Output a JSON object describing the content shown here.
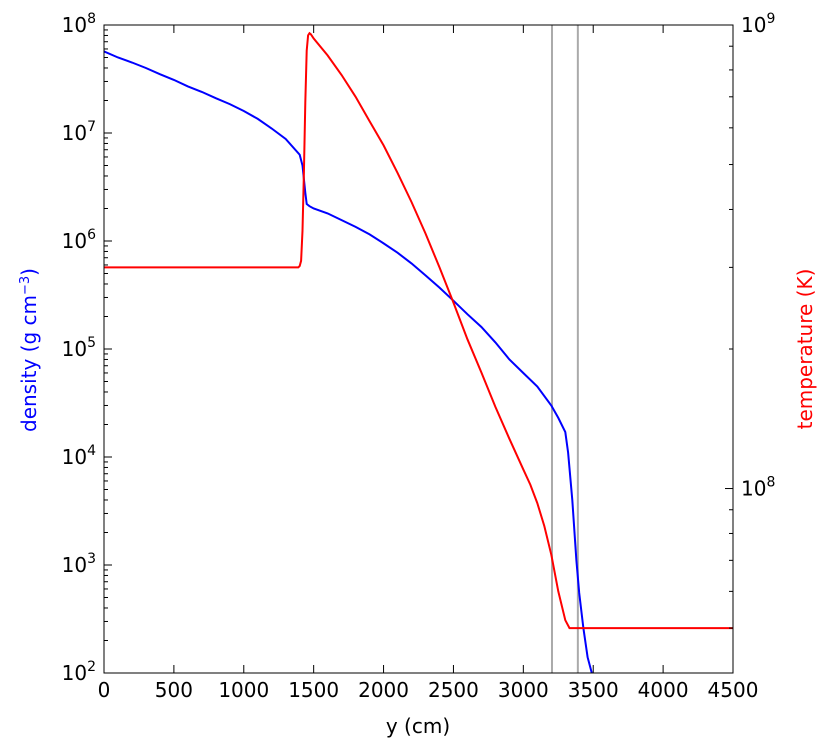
{
  "chart_data": {
    "type": "line",
    "xlabel": "y (cm)",
    "ylabel_left": {
      "text": "density (g cm",
      "sup": "−3",
      "close": ")"
    },
    "ylabel_right": "temperature (K)",
    "xlim": [
      0,
      4500
    ],
    "ylim_left": [
      100,
      100000000
    ],
    "ylim_right": [
      40000000,
      1000000000
    ],
    "scale_left": "log",
    "scale_right": "log",
    "grid": false,
    "xticks": [
      0,
      500,
      1000,
      1500,
      2000,
      2500,
      3000,
      3500,
      4000,
      4500
    ],
    "xtick_labels": [
      "0",
      "500",
      "1000",
      "1500",
      "2000",
      "2500",
      "3000",
      "3500",
      "4000",
      "4500"
    ],
    "yticks_left": [
      {
        "value": 100,
        "base": "10",
        "exp": "2"
      },
      {
        "value": 1000,
        "base": "10",
        "exp": "3"
      },
      {
        "value": 10000,
        "base": "10",
        "exp": "4"
      },
      {
        "value": 100000,
        "base": "10",
        "exp": "5"
      },
      {
        "value": 1000000,
        "base": "10",
        "exp": "6"
      },
      {
        "value": 10000000,
        "base": "10",
        "exp": "7"
      },
      {
        "value": 100000000,
        "base": "10",
        "exp": "8"
      }
    ],
    "yticks_right": [
      {
        "value": 100000000,
        "base": "10",
        "exp": "8"
      },
      {
        "value": 1000000000,
        "base": "10",
        "exp": "9"
      }
    ],
    "vlines": [
      {
        "x": 3205,
        "color": "#aaaaaa"
      },
      {
        "x": 3390,
        "color": "#aaaaaa"
      }
    ],
    "series": [
      {
        "axis": "left",
        "color": "#0000ff",
        "x": [
          0,
          100,
          200,
          300,
          400,
          500,
          600,
          700,
          800,
          900,
          1000,
          1100,
          1200,
          1300,
          1400,
          1420,
          1440,
          1450,
          1470,
          1500,
          1600,
          1700,
          1800,
          1900,
          2000,
          2100,
          2200,
          2300,
          2400,
          2500,
          2600,
          2700,
          2800,
          2900,
          3000,
          3100,
          3200,
          3250,
          3300,
          3320,
          3350,
          3380,
          3400,
          3430,
          3460,
          3490
        ],
        "y": [
          57000000,
          50000000,
          45000000,
          40000000,
          35000000,
          31000000,
          27000000,
          24000000,
          21000000,
          18500000,
          16000000,
          13500000,
          11000000,
          8800000,
          6300000,
          5000000,
          2800000,
          2200000,
          2100000,
          2000000,
          1800000,
          1560000,
          1350000,
          1150000,
          950000,
          780000,
          620000,
          480000,
          370000,
          280000,
          210000,
          160000,
          115000,
          80000,
          60000,
          45000,
          30000,
          23000,
          17000,
          11000,
          4000,
          1100,
          550,
          260,
          140,
          100
        ]
      },
      {
        "axis": "right",
        "color": "#ff0000",
        "x": [
          0,
          500,
          1000,
          1300,
          1390,
          1400,
          1410,
          1420,
          1430,
          1440,
          1450,
          1460,
          1470,
          1480,
          1500,
          1600,
          1700,
          1800,
          1900,
          2000,
          2100,
          2200,
          2300,
          2400,
          2500,
          2600,
          2700,
          2800,
          2900,
          3000,
          3050,
          3100,
          3150,
          3200,
          3250,
          3300,
          3330,
          3400,
          3600,
          3800,
          4000,
          4200,
          4500
        ],
        "y": [
          300000000,
          300000000,
          300000000,
          300000000,
          300000000,
          302000000,
          310000000,
          360000000,
          480000000,
          680000000,
          880000000,
          950000000,
          960000000,
          955000000,
          935000000,
          860000000,
          780000000,
          700000000,
          620000000,
          550000000,
          480000000,
          415000000,
          355000000,
          300000000,
          252000000,
          210000000,
          178000000,
          150000000,
          128000000,
          110000000,
          102000000,
          93000000,
          83000000,
          72000000,
          60000000,
          52000000,
          50000000,
          50000000,
          50000000,
          50000000,
          50000000,
          50000000,
          50000000
        ]
      }
    ]
  }
}
